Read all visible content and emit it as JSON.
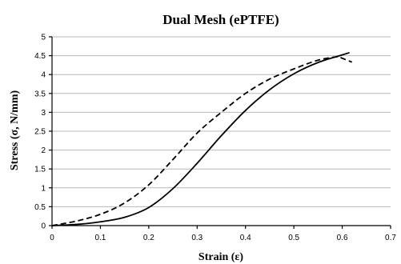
{
  "chart_data": {
    "type": "line",
    "title": "Dual Mesh (ePTFE)",
    "xlabel": "Strain (ε)",
    "ylabel": "Stress (σ, N/mm)",
    "xlim": [
      0,
      0.7
    ],
    "ylim": [
      0,
      5
    ],
    "x_ticks": [
      "0",
      "0.1",
      "0.2",
      "0.3",
      "0.4",
      "0.5",
      "0.6",
      "0.7"
    ],
    "y_ticks": [
      "0",
      "0.5",
      "1",
      "1.5",
      "2",
      "2.5",
      "3",
      "3.5",
      "4",
      "4.5",
      "5"
    ],
    "grid": "horizontal",
    "legend": "none",
    "series": [
      {
        "style": "solid",
        "color": "#000000",
        "points": [
          [
            0,
            0
          ],
          [
            0.05,
            0.03
          ],
          [
            0.1,
            0.1
          ],
          [
            0.15,
            0.22
          ],
          [
            0.2,
            0.48
          ],
          [
            0.25,
            0.98
          ],
          [
            0.3,
            1.65
          ],
          [
            0.35,
            2.38
          ],
          [
            0.4,
            3.05
          ],
          [
            0.45,
            3.6
          ],
          [
            0.5,
            4.02
          ],
          [
            0.55,
            4.32
          ],
          [
            0.6,
            4.52
          ],
          [
            0.615,
            4.58
          ]
        ]
      },
      {
        "style": "dashed",
        "color": "#000000",
        "points": [
          [
            0,
            0
          ],
          [
            0.05,
            0.12
          ],
          [
            0.1,
            0.3
          ],
          [
            0.15,
            0.6
          ],
          [
            0.2,
            1.08
          ],
          [
            0.25,
            1.75
          ],
          [
            0.3,
            2.45
          ],
          [
            0.35,
            3.0
          ],
          [
            0.4,
            3.5
          ],
          [
            0.45,
            3.88
          ],
          [
            0.5,
            4.15
          ],
          [
            0.55,
            4.38
          ],
          [
            0.59,
            4.47
          ],
          [
            0.6,
            4.43
          ],
          [
            0.62,
            4.33
          ]
        ]
      }
    ]
  }
}
